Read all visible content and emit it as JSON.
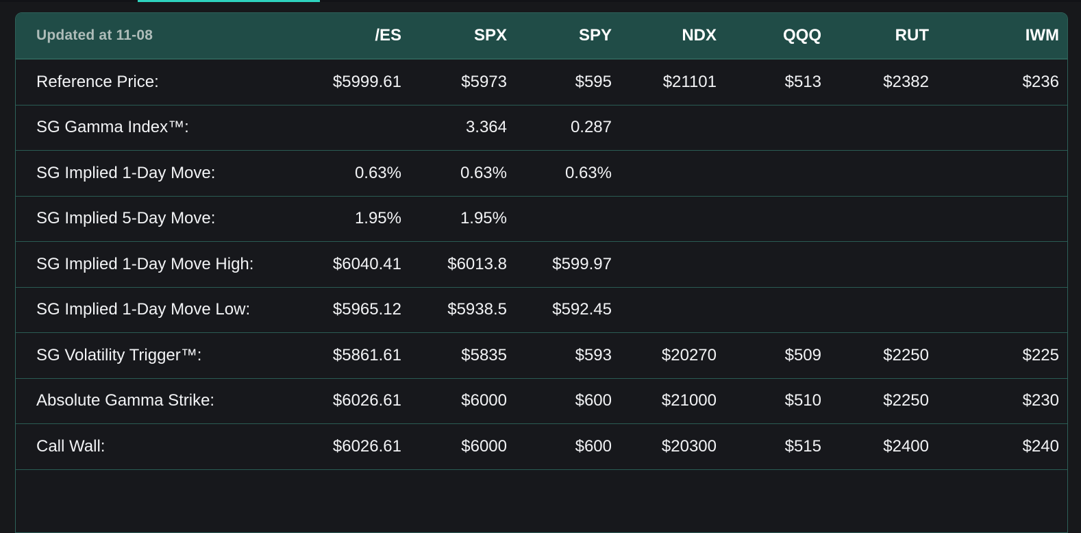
{
  "page": {
    "background_color": "#17181b",
    "accent_color": "#2ed3be",
    "header_bar_color": "#204c47",
    "border_color": "#2d6159",
    "text_color": "#f2f3f5"
  },
  "table": {
    "updated_label": "Updated at 11-08",
    "columns": [
      "/ES",
      "SPX",
      "SPY",
      "NDX",
      "QQQ",
      "RUT",
      "IWM"
    ],
    "rows": [
      {
        "label": "Reference Price:",
        "values": [
          "$5999.61",
          "$5973",
          "$595",
          "$21101",
          "$513",
          "$2382",
          "$236"
        ]
      },
      {
        "label": "SG Gamma Index™:",
        "values": [
          "",
          "3.364",
          "0.287",
          "",
          "",
          "",
          ""
        ]
      },
      {
        "label": "SG Implied 1-Day Move:",
        "values": [
          "0.63%",
          "0.63%",
          "0.63%",
          "",
          "",
          "",
          ""
        ]
      },
      {
        "label": "SG Implied 5-Day Move:",
        "values": [
          "1.95%",
          "1.95%",
          "",
          "",
          "",
          "",
          ""
        ]
      },
      {
        "label": "SG Implied 1-Day Move High:",
        "values": [
          "$6040.41",
          "$6013.8",
          "$599.97",
          "",
          "",
          "",
          ""
        ]
      },
      {
        "label": "SG Implied 1-Day Move Low:",
        "values": [
          "$5965.12",
          "$5938.5",
          "$592.45",
          "",
          "",
          "",
          ""
        ]
      },
      {
        "label": "SG Volatility Trigger™:",
        "values": [
          "$5861.61",
          "$5835",
          "$593",
          "$20270",
          "$509",
          "$2250",
          "$225"
        ]
      },
      {
        "label": "Absolute Gamma Strike:",
        "values": [
          "$6026.61",
          "$6000",
          "$600",
          "$21000",
          "$510",
          "$2250",
          "$230"
        ]
      },
      {
        "label": "Call Wall:",
        "values": [
          "$6026.61",
          "$6000",
          "$600",
          "$20300",
          "$515",
          "$2400",
          "$240"
        ]
      }
    ]
  }
}
